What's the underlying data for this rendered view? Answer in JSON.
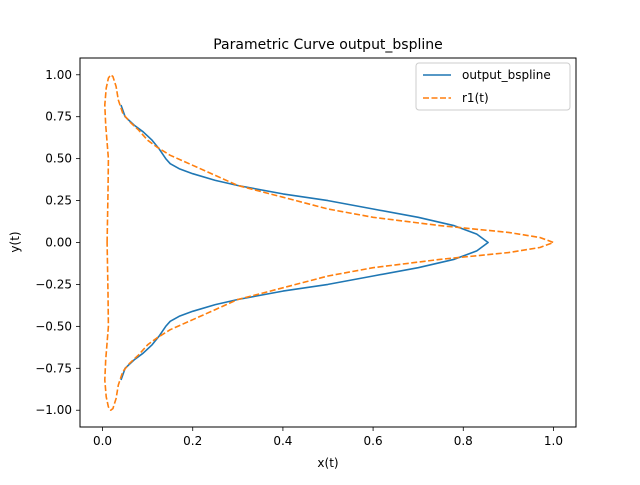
{
  "chart_data": {
    "type": "line",
    "title": "Parametric Curve output_bspline",
    "xlabel": "x(t)",
    "ylabel": "y(t)",
    "xlim": [
      -0.05,
      1.05
    ],
    "ylim": [
      -1.1,
      1.1
    ],
    "xticks": [
      0.0,
      0.2,
      0.4,
      0.6,
      0.8,
      1.0
    ],
    "xtick_labels": [
      "0.0",
      "0.2",
      "0.4",
      "0.6",
      "0.8",
      "1.0"
    ],
    "yticks": [
      -1.0,
      -0.75,
      -0.5,
      -0.25,
      0.0,
      0.25,
      0.5,
      0.75,
      1.0
    ],
    "ytick_labels": [
      "−1.00",
      "−0.75",
      "−0.50",
      "−0.25",
      "0.00",
      "0.25",
      "0.50",
      "0.75",
      "1.00"
    ],
    "grid": false,
    "legend_position": "upper right",
    "series": [
      {
        "name": "output_bspline",
        "color": "#1f77b4",
        "style": "solid",
        "points": [
          [
            0.041,
            0.82
          ],
          [
            0.05,
            0.75
          ],
          [
            0.07,
            0.7
          ],
          [
            0.09,
            0.66
          ],
          [
            0.11,
            0.61
          ],
          [
            0.125,
            0.56
          ],
          [
            0.14,
            0.5
          ],
          [
            0.15,
            0.47
          ],
          [
            0.17,
            0.44
          ],
          [
            0.2,
            0.41
          ],
          [
            0.25,
            0.37
          ],
          [
            0.3,
            0.34
          ],
          [
            0.4,
            0.29
          ],
          [
            0.5,
            0.25
          ],
          [
            0.6,
            0.2
          ],
          [
            0.7,
            0.15
          ],
          [
            0.78,
            0.1
          ],
          [
            0.83,
            0.05
          ],
          [
            0.855,
            0.0
          ],
          [
            0.83,
            -0.05
          ],
          [
            0.78,
            -0.1
          ],
          [
            0.7,
            -0.15
          ],
          [
            0.6,
            -0.2
          ],
          [
            0.5,
            -0.25
          ],
          [
            0.4,
            -0.29
          ],
          [
            0.3,
            -0.34
          ],
          [
            0.25,
            -0.37
          ],
          [
            0.2,
            -0.41
          ],
          [
            0.17,
            -0.44
          ],
          [
            0.15,
            -0.47
          ],
          [
            0.14,
            -0.5
          ],
          [
            0.125,
            -0.56
          ],
          [
            0.11,
            -0.61
          ],
          [
            0.09,
            -0.66
          ],
          [
            0.07,
            -0.7
          ],
          [
            0.05,
            -0.75
          ],
          [
            0.041,
            -0.82
          ]
        ]
      },
      {
        "name": "r1(t)",
        "color": "#ff7f0e",
        "style": "dashed",
        "points": [
          [
            0.01,
            0.0
          ],
          [
            0.012,
            0.3
          ],
          [
            0.013,
            0.5
          ],
          [
            0.007,
            0.7
          ],
          [
            0.005,
            0.82
          ],
          [
            0.008,
            0.92
          ],
          [
            0.013,
            0.98
          ],
          [
            0.018,
            1.0
          ],
          [
            0.023,
            0.99
          ],
          [
            0.03,
            0.93
          ],
          [
            0.035,
            0.85
          ],
          [
            0.045,
            0.77
          ],
          [
            0.06,
            0.72
          ],
          [
            0.08,
            0.67
          ],
          [
            0.1,
            0.61
          ],
          [
            0.12,
            0.57
          ],
          [
            0.15,
            0.52
          ],
          [
            0.2,
            0.46
          ],
          [
            0.25,
            0.4
          ],
          [
            0.3,
            0.34
          ],
          [
            0.4,
            0.27
          ],
          [
            0.5,
            0.2
          ],
          [
            0.6,
            0.15
          ],
          [
            0.75,
            0.1
          ],
          [
            0.9,
            0.06
          ],
          [
            0.97,
            0.03
          ],
          [
            1.0,
            0.0
          ],
          [
            0.97,
            -0.03
          ],
          [
            0.9,
            -0.06
          ],
          [
            0.75,
            -0.1
          ],
          [
            0.6,
            -0.15
          ],
          [
            0.5,
            -0.2
          ],
          [
            0.4,
            -0.27
          ],
          [
            0.3,
            -0.34
          ],
          [
            0.25,
            -0.4
          ],
          [
            0.2,
            -0.46
          ],
          [
            0.15,
            -0.52
          ],
          [
            0.12,
            -0.57
          ],
          [
            0.1,
            -0.61
          ],
          [
            0.08,
            -0.67
          ],
          [
            0.06,
            -0.72
          ],
          [
            0.045,
            -0.77
          ],
          [
            0.035,
            -0.85
          ],
          [
            0.03,
            -0.93
          ],
          [
            0.023,
            -0.99
          ],
          [
            0.018,
            -1.0
          ],
          [
            0.013,
            -0.98
          ],
          [
            0.008,
            -0.92
          ],
          [
            0.005,
            -0.82
          ],
          [
            0.007,
            -0.7
          ],
          [
            0.013,
            -0.5
          ],
          [
            0.012,
            -0.3
          ],
          [
            0.01,
            0.0
          ]
        ]
      }
    ]
  }
}
